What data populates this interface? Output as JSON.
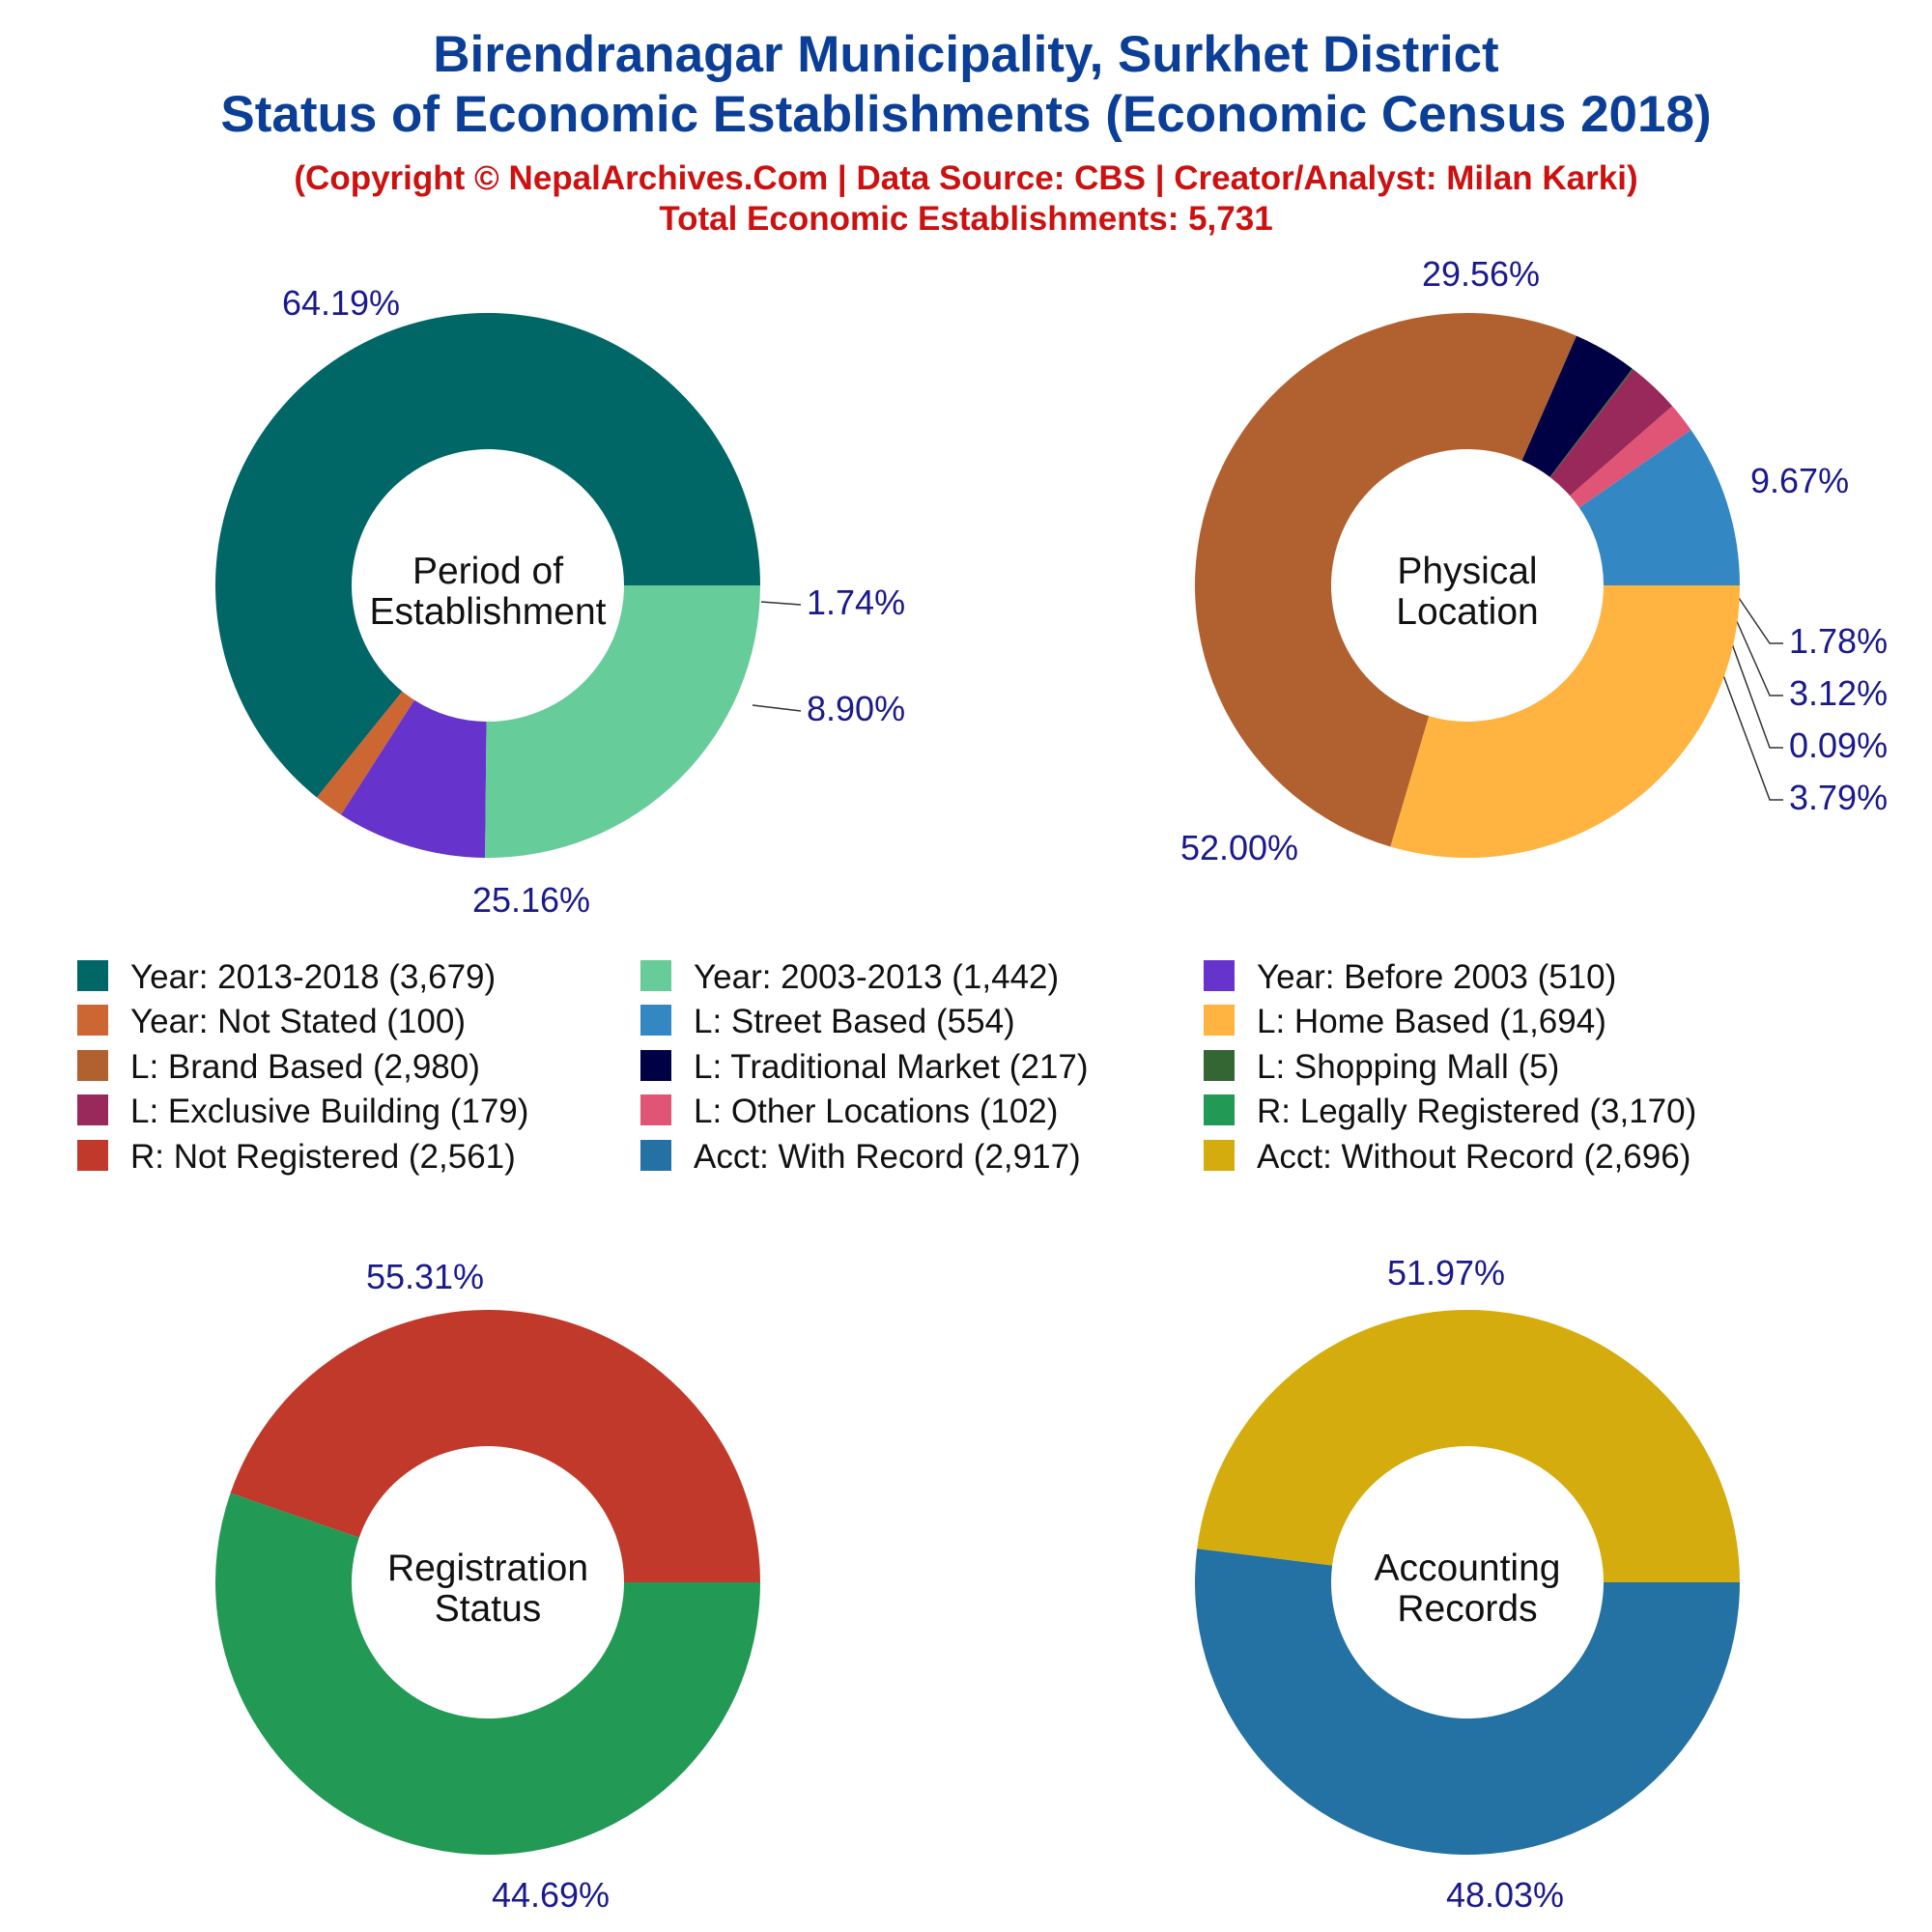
{
  "title": {
    "line1": "Birendranagar Municipality, Surkhet District",
    "line2": "Status of Economic Establishments (Economic Census 2018)"
  },
  "subtitle": {
    "line1": "(Copyright © NepalArchives.Com | Data Source: CBS | Creator/Analyst: Milan Karki)",
    "line2": "Total Economic Establishments: 5,731"
  },
  "legend": [
    {
      "label": "Year: 2013-2018 (3,679)",
      "color": "#006666"
    },
    {
      "label": "Year: 2003-2013 (1,442)",
      "color": "#66cc99"
    },
    {
      "label": "Year: Before 2003 (510)",
      "color": "#6633cc"
    },
    {
      "label": "Year: Not Stated (100)",
      "color": "#cc6633"
    },
    {
      "label": "L: Street Based (554)",
      "color": "#3388c4"
    },
    {
      "label": "L: Home Based (1,694)",
      "color": "#ffb340"
    },
    {
      "label": "L: Brand Based (2,980)",
      "color": "#b0612f"
    },
    {
      "label": "L: Traditional Market (217)",
      "color": "#000044"
    },
    {
      "label": "L: Shopping Mall (5)",
      "color": "#336633"
    },
    {
      "label": "L: Exclusive Building (179)",
      "color": "#99295a"
    },
    {
      "label": "L: Other Locations (102)",
      "color": "#e05575"
    },
    {
      "label": "R: Legally Registered (3,170)",
      "color": "#229955"
    },
    {
      "label": "R: Not Registered (2,561)",
      "color": "#c0392b"
    },
    {
      "label": "Acct: With Record (2,917)",
      "color": "#2471a3"
    },
    {
      "label": "Acct: Without Record (2,696)",
      "color": "#d4ac0d"
    }
  ],
  "chart_data": [
    {
      "type": "pie",
      "center_label": [
        "Period of",
        "Establishment"
      ],
      "slices": [
        {
          "category": "Year: 2013-2018",
          "value": 3679,
          "pct_label": "64.19%",
          "color": "#006666"
        },
        {
          "category": "Year: Not Stated",
          "value": 100,
          "pct_label": "1.74%",
          "color": "#cc6633"
        },
        {
          "category": "Year: Before 2003",
          "value": 510,
          "pct_label": "8.90%",
          "color": "#6633cc"
        },
        {
          "category": "Year: 2003-2013",
          "value": 1442,
          "pct_label": "25.16%",
          "color": "#66cc99"
        }
      ]
    },
    {
      "type": "pie",
      "center_label": [
        "Physical",
        "Location"
      ],
      "slices": [
        {
          "category": "L: Street Based",
          "value": 554,
          "pct_label": "9.67%",
          "color": "#3388c4"
        },
        {
          "category": "L: Other Locations",
          "value": 102,
          "pct_label": "1.78%",
          "color": "#e05575"
        },
        {
          "category": "L: Exclusive Building",
          "value": 179,
          "pct_label": "3.12%",
          "color": "#99295a"
        },
        {
          "category": "L: Shopping Mall",
          "value": 5,
          "pct_label": "0.09%",
          "color": "#336633"
        },
        {
          "category": "L: Traditional Market",
          "value": 217,
          "pct_label": "3.79%",
          "color": "#000044"
        },
        {
          "category": "L: Brand Based",
          "value": 2980,
          "pct_label": "52.00%",
          "color": "#b0612f"
        },
        {
          "category": "L: Home Based",
          "value": 1694,
          "pct_label": "29.56%",
          "color": "#ffb340"
        }
      ]
    },
    {
      "type": "pie",
      "center_label": [
        "Registration",
        "Status"
      ],
      "slices": [
        {
          "category": "R: Not Registered",
          "value": 2561,
          "pct_label": "44.69%",
          "color": "#c0392b"
        },
        {
          "category": "R: Legally Registered",
          "value": 3170,
          "pct_label": "55.31%",
          "color": "#229955"
        }
      ]
    },
    {
      "type": "pie",
      "center_label": [
        "Accounting",
        "Records"
      ],
      "slices": [
        {
          "category": "Acct: Without Record",
          "value": 2696,
          "pct_label": "48.03%",
          "color": "#d4ac0d"
        },
        {
          "category": "Acct: With Record",
          "value": 2917,
          "pct_label": "51.97%",
          "color": "#2471a3"
        }
      ]
    }
  ]
}
